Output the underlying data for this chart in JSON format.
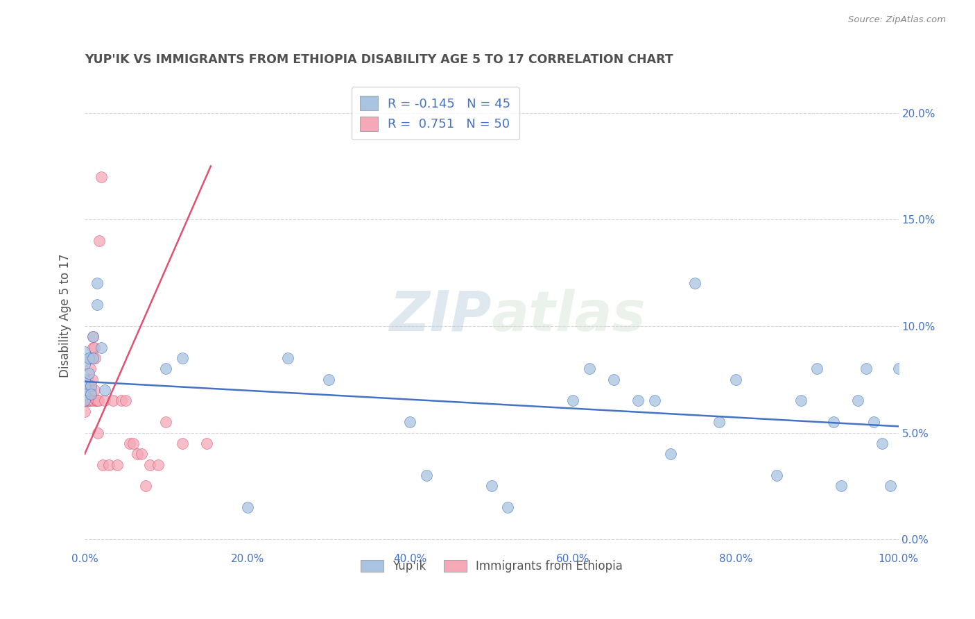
{
  "title": "YUP'IK VS IMMIGRANTS FROM ETHIOPIA DISABILITY AGE 5 TO 17 CORRELATION CHART",
  "source": "Source: ZipAtlas.com",
  "ylabel": "Disability Age 5 to 17",
  "xlabel_ticks": [
    "0.0%",
    "20.0%",
    "40.0%",
    "60.0%",
    "80.0%",
    "100.0%"
  ],
  "ylabel_ticks": [
    "0.0%",
    "5.0%",
    "10.0%",
    "15.0%",
    "20.0%"
  ],
  "xlim": [
    0.0,
    1.0
  ],
  "ylim": [
    -0.005,
    0.215
  ],
  "legend_label1": "Yup'ik",
  "legend_label2": "Immigrants from Ethiopia",
  "r1": "-0.145",
  "n1": "45",
  "r2": "0.751",
  "n2": "50",
  "color1": "#a8c4e0",
  "color2": "#f4a8b8",
  "line_color1": "#4472c4",
  "line_color2": "#e05070",
  "watermark": "ZIPatlas",
  "background_color": "#ffffff",
  "grid_color": "#d8d8d8",
  "title_color": "#505050",
  "legend_text_color": "#4472c4",
  "yupik_x": [
    0.0,
    0.0,
    0.0,
    0.0,
    0.0,
    0.0,
    0.005,
    0.005,
    0.008,
    0.008,
    0.01,
    0.01,
    0.015,
    0.015,
    0.02,
    0.025,
    0.1,
    0.12,
    0.2,
    0.25,
    0.3,
    0.4,
    0.42,
    0.5,
    0.52,
    0.6,
    0.62,
    0.65,
    0.68,
    0.7,
    0.72,
    0.75,
    0.78,
    0.8,
    0.85,
    0.88,
    0.9,
    0.92,
    0.93,
    0.95,
    0.96,
    0.97,
    0.98,
    0.99,
    1.0
  ],
  "yupik_y": [
    0.075,
    0.082,
    0.088,
    0.072,
    0.068,
    0.065,
    0.078,
    0.085,
    0.072,
    0.068,
    0.095,
    0.085,
    0.11,
    0.12,
    0.09,
    0.07,
    0.08,
    0.085,
    0.015,
    0.085,
    0.075,
    0.055,
    0.03,
    0.025,
    0.015,
    0.065,
    0.08,
    0.075,
    0.065,
    0.065,
    0.04,
    0.12,
    0.055,
    0.075,
    0.03,
    0.065,
    0.08,
    0.055,
    0.025,
    0.065,
    0.08,
    0.055,
    0.045,
    0.025,
    0.08
  ],
  "ethiopia_x": [
    0.0,
    0.0,
    0.0,
    0.0,
    0.0,
    0.002,
    0.002,
    0.003,
    0.003,
    0.004,
    0.004,
    0.005,
    0.005,
    0.006,
    0.006,
    0.007,
    0.007,
    0.008,
    0.008,
    0.009,
    0.01,
    0.01,
    0.01,
    0.012,
    0.012,
    0.013,
    0.014,
    0.015,
    0.015,
    0.016,
    0.017,
    0.018,
    0.02,
    0.022,
    0.025,
    0.03,
    0.035,
    0.04,
    0.045,
    0.05,
    0.055,
    0.06,
    0.065,
    0.07,
    0.075,
    0.08,
    0.09,
    0.1,
    0.12,
    0.15
  ],
  "ethiopia_y": [
    0.065,
    0.065,
    0.07,
    0.07,
    0.06,
    0.065,
    0.07,
    0.065,
    0.07,
    0.07,
    0.075,
    0.065,
    0.072,
    0.065,
    0.072,
    0.08,
    0.085,
    0.065,
    0.07,
    0.075,
    0.09,
    0.095,
    0.065,
    0.09,
    0.07,
    0.085,
    0.065,
    0.065,
    0.065,
    0.05,
    0.065,
    0.14,
    0.17,
    0.035,
    0.065,
    0.035,
    0.065,
    0.035,
    0.065,
    0.065,
    0.045,
    0.045,
    0.04,
    0.04,
    0.025,
    0.035,
    0.035,
    0.055,
    0.045,
    0.045
  ],
  "reg_line1_x": [
    0.0,
    1.0
  ],
  "reg_line1_y": [
    0.074,
    0.053
  ],
  "reg_line2_x": [
    0.0,
    0.155
  ],
  "reg_line2_y": [
    0.04,
    0.175
  ]
}
